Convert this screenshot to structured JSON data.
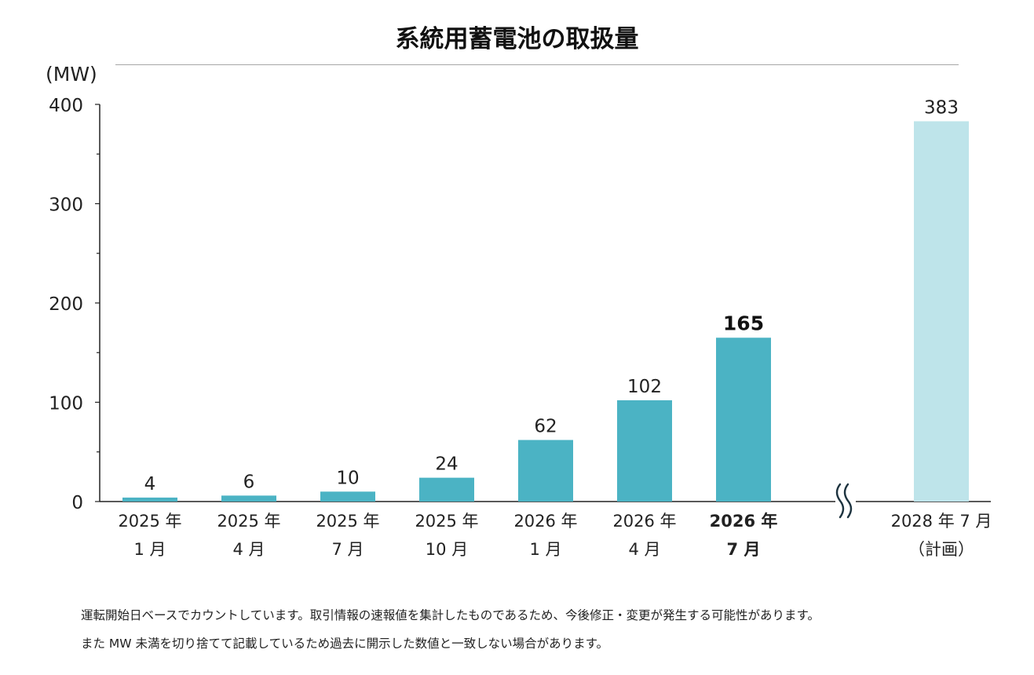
{
  "chart_data": {
    "type": "bar",
    "title": "系統用蓄電池の取扱量",
    "ylabel": "(MW)",
    "xlabel": "",
    "ylim": [
      0,
      400
    ],
    "yticks": [
      0,
      100,
      200,
      300,
      400
    ],
    "grid": false,
    "legend": "none",
    "break_between": [
      6,
      7
    ],
    "categories": [
      {
        "line1": "2025 年",
        "line2": "1 月",
        "value": 4,
        "highlight": false,
        "planned": false
      },
      {
        "line1": "2025 年",
        "line2": "4 月",
        "value": 6,
        "highlight": false,
        "planned": false
      },
      {
        "line1": "2025 年",
        "line2": "7 月",
        "value": 10,
        "highlight": false,
        "planned": false
      },
      {
        "line1": "2025 年",
        "line2": "10 月",
        "value": 24,
        "highlight": false,
        "planned": false
      },
      {
        "line1": "2026 年",
        "line2": "1 月",
        "value": 62,
        "highlight": false,
        "planned": false
      },
      {
        "line1": "2026 年",
        "line2": "4 月",
        "value": 102,
        "highlight": false,
        "planned": false
      },
      {
        "line1": "2026 年",
        "line2": "7 月",
        "value": 165,
        "highlight": true,
        "planned": false
      },
      {
        "line1": "2028 年 7 月",
        "line2": "（計画）",
        "value": 383,
        "highlight": false,
        "planned": true
      }
    ],
    "colors": {
      "bar": "#4bb3c4",
      "planned_bar": "#bee4ea",
      "axis": "#222222",
      "break_mark": "#1e3440"
    }
  },
  "notes": [
    "運転開始日ベースでカウントしています。取引情報の速報値を集計したものであるため、今後修正・変更が発生する可能性があります。",
    "また MW 未満を切り捨てて記載しているため過去に開示した数値と一致しない場合があります。"
  ]
}
